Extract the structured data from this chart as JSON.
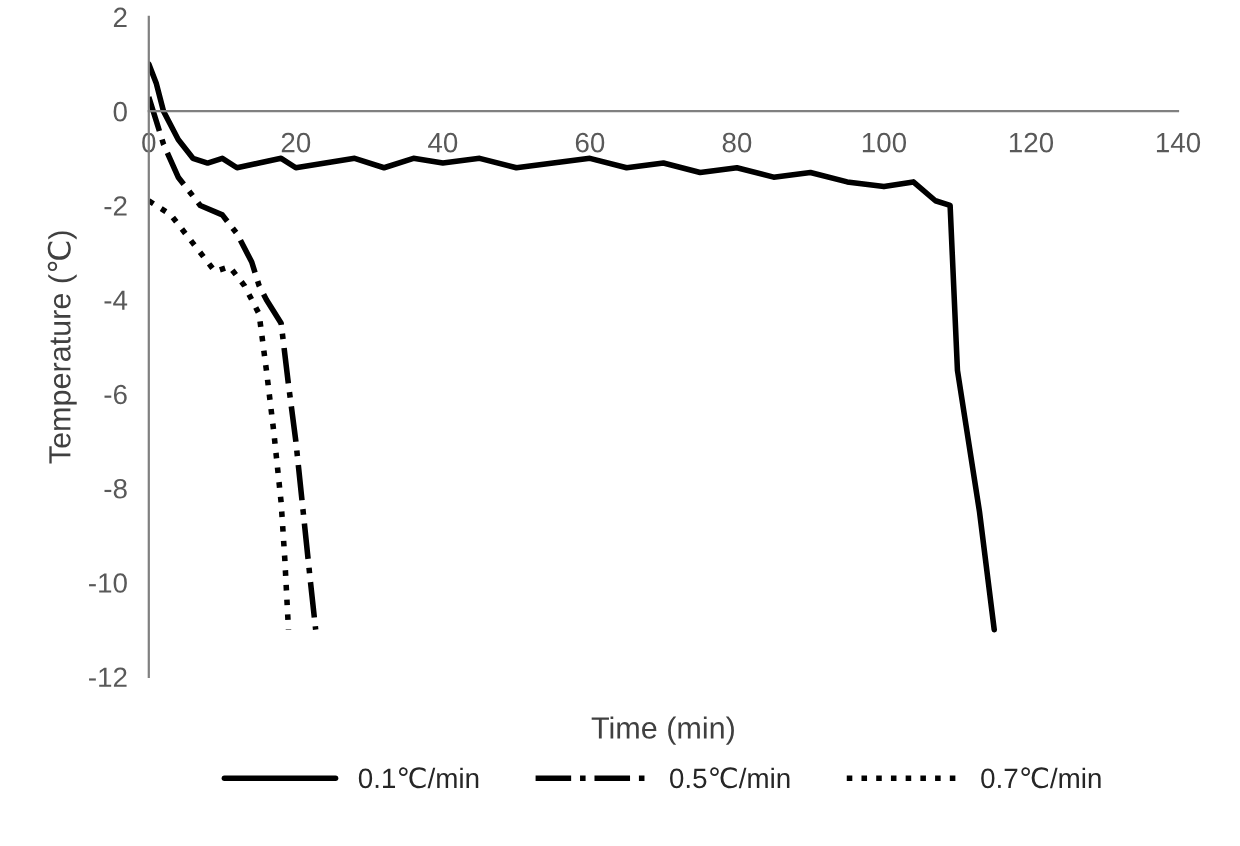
{
  "chart_data": {
    "type": "line",
    "xlabel": "Time (min)",
    "ylabel": "Temperature (℃)",
    "xlim": [
      0,
      140
    ],
    "xticks": [
      0,
      20,
      40,
      60,
      80,
      100,
      120,
      140
    ],
    "ylim": [
      -12,
      2
    ],
    "yticks": [
      -12,
      -10,
      -8,
      -6,
      -4,
      -2,
      0,
      2
    ],
    "grid": false,
    "legend": "bottom",
    "marker": "none",
    "series": [
      {
        "name": "0.1℃/min",
        "color": "#000000",
        "line_style": "solid",
        "x": [
          0,
          1,
          2,
          4,
          6,
          8,
          10,
          12,
          15,
          18,
          20,
          24,
          28,
          32,
          36,
          40,
          45,
          50,
          55,
          60,
          65,
          70,
          75,
          80,
          85,
          90,
          95,
          100,
          104,
          107,
          109,
          110,
          111,
          113,
          115
        ],
        "values": [
          1,
          0.6,
          0,
          -0.6,
          -1.0,
          -1.1,
          -1.0,
          -1.2,
          -1.1,
          -1.0,
          -1.2,
          -1.1,
          -1.0,
          -1.2,
          -1.0,
          -1.1,
          -1.0,
          -1.2,
          -1.1,
          -1.0,
          -1.2,
          -1.1,
          -1.3,
          -1.2,
          -1.4,
          -1.3,
          -1.5,
          -1.6,
          -1.5,
          -1.9,
          -2.0,
          -5.5,
          -6.5,
          -8.5,
          -11
        ]
      },
      {
        "name": "0.5℃/min",
        "color": "#000000",
        "line_style": "dashdot",
        "x": [
          0,
          2,
          4,
          7,
          10,
          12,
          14,
          15,
          16,
          18,
          19,
          20,
          21,
          22,
          22.7
        ],
        "values": [
          0.3,
          -0.7,
          -1.4,
          -2.0,
          -2.2,
          -2.6,
          -3.2,
          -3.7,
          -4.0,
          -4.5,
          -5.8,
          -7.0,
          -8.5,
          -10,
          -11
        ]
      },
      {
        "name": "0.7℃/min",
        "color": "#000000",
        "line_style": "dotted",
        "x": [
          0,
          3,
          6,
          9,
          11,
          13,
          15,
          16,
          17,
          18,
          18.5,
          19
        ],
        "values": [
          -1.9,
          -2.2,
          -2.8,
          -3.4,
          -3.3,
          -3.7,
          -4.3,
          -5.5,
          -6.8,
          -8.3,
          -9.5,
          -11
        ]
      }
    ]
  }
}
